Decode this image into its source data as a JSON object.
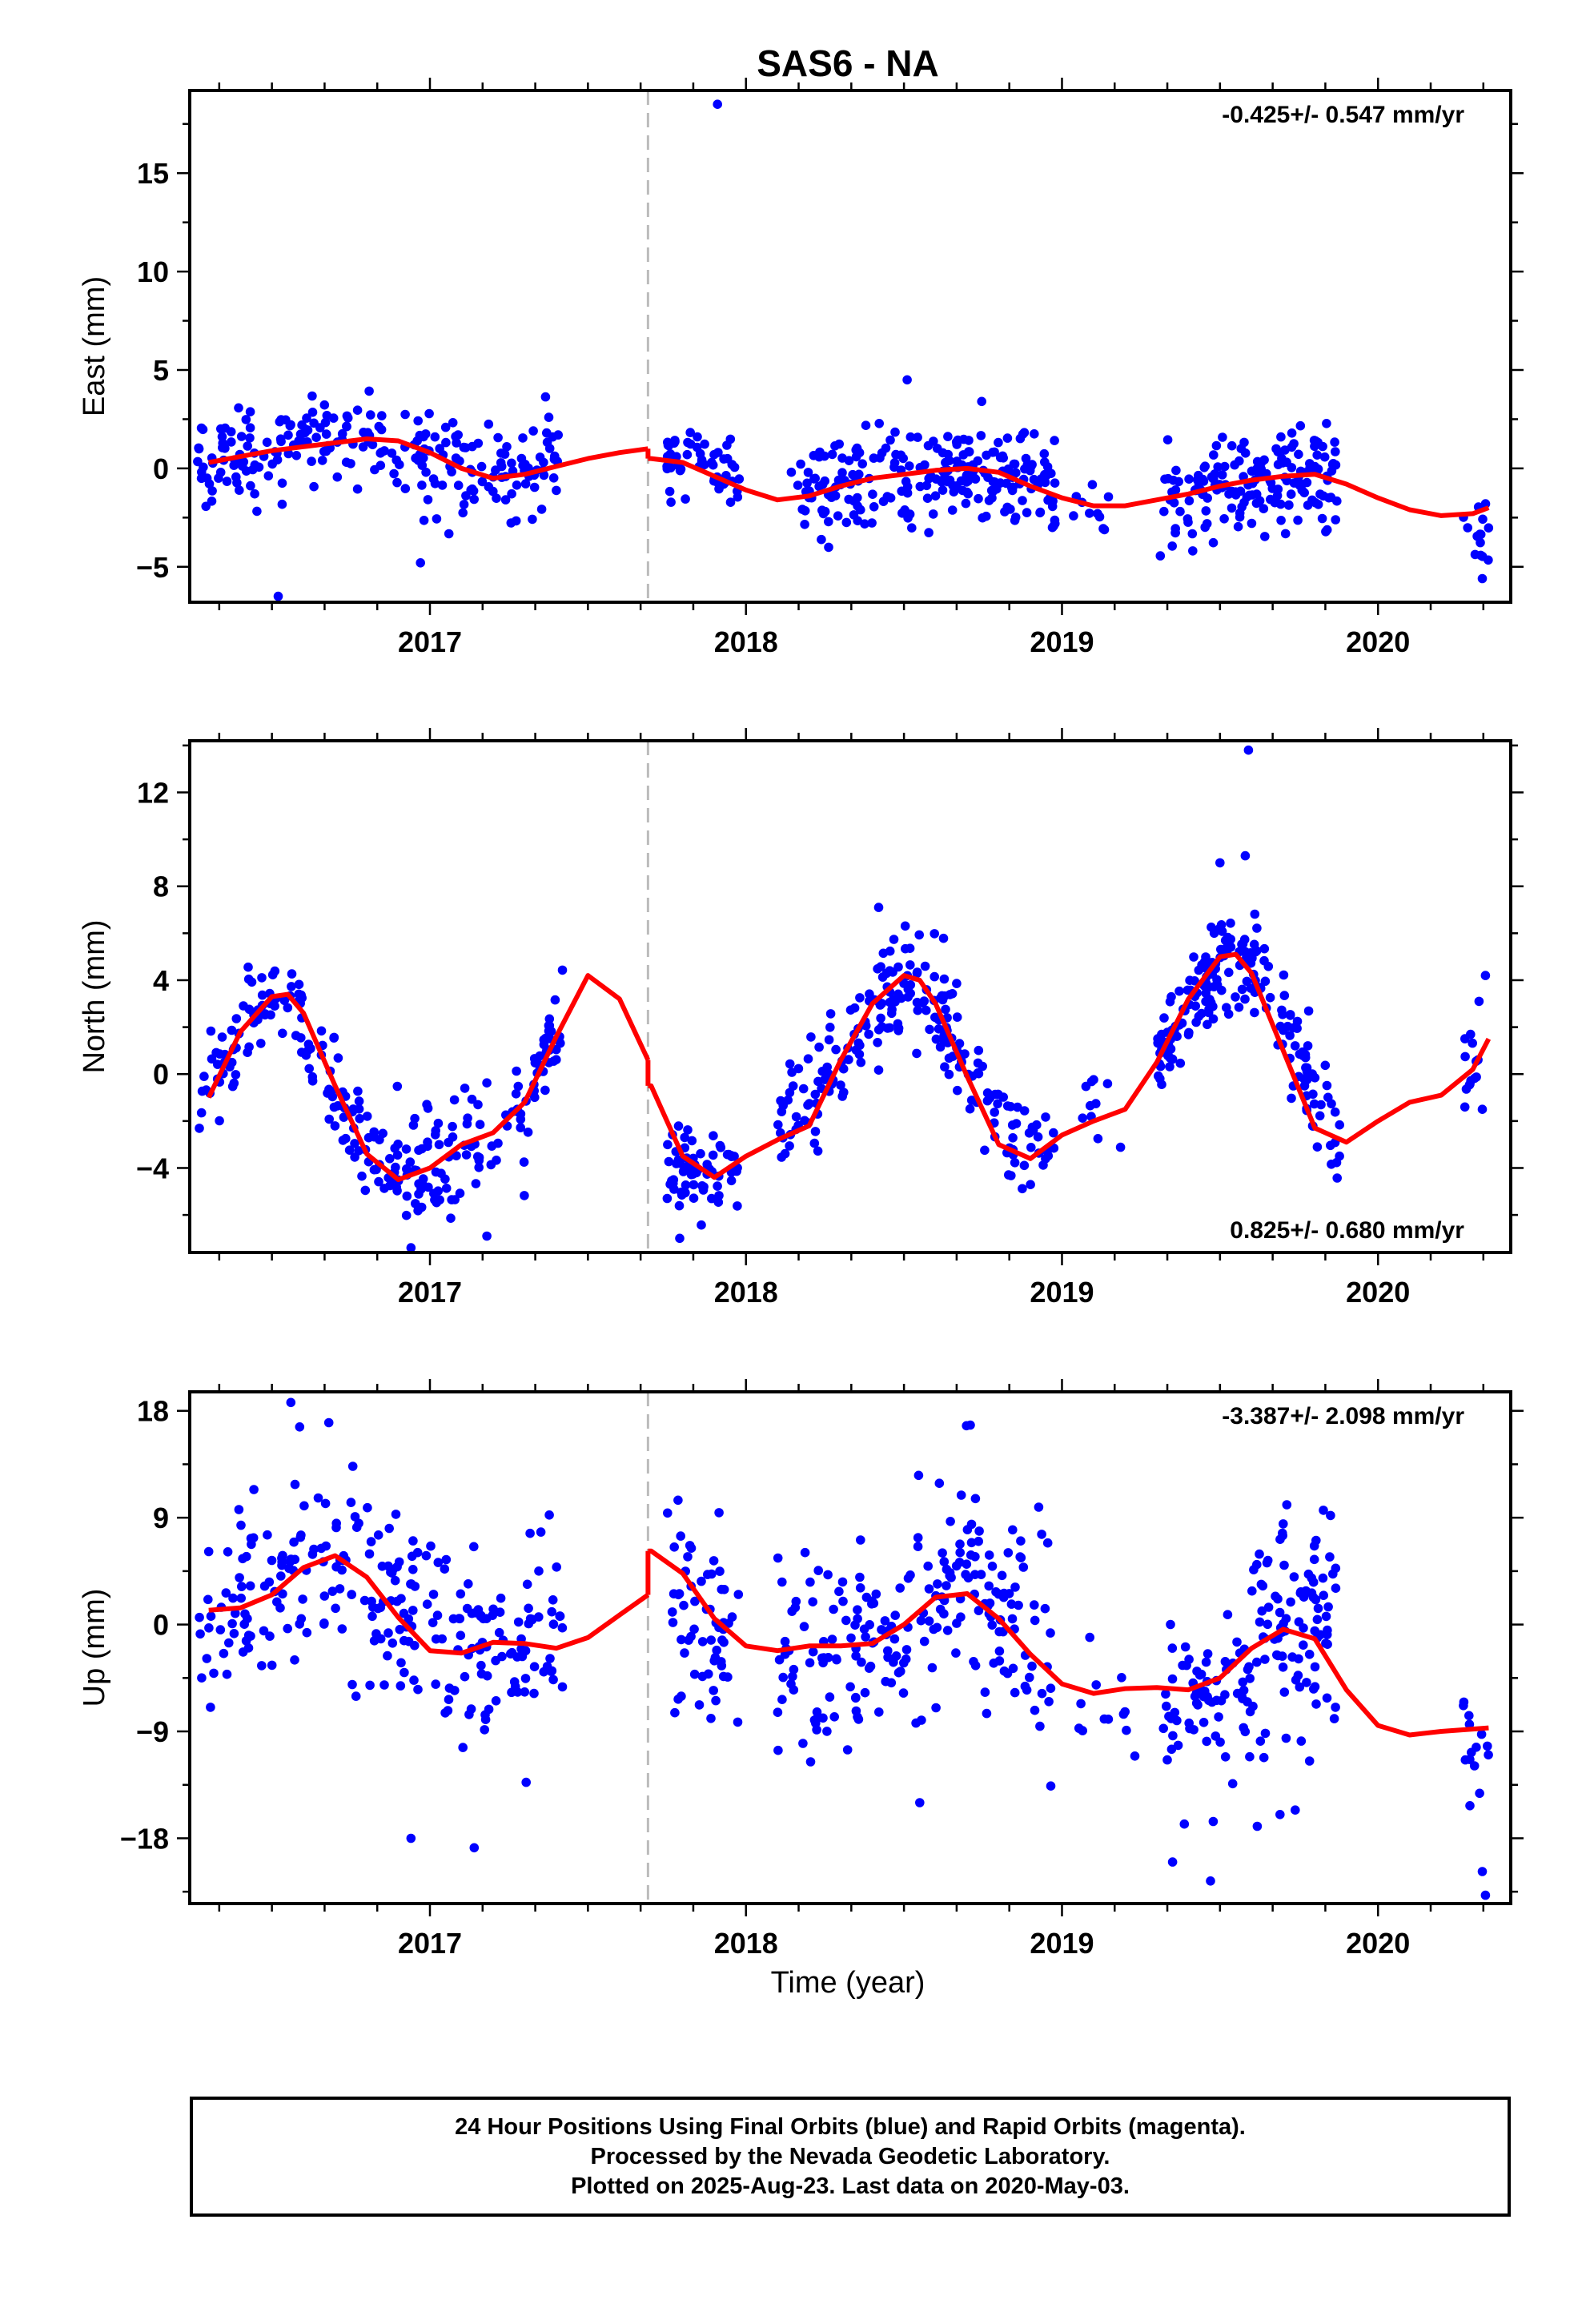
{
  "title": "SAS6 - NA",
  "colors": {
    "final": "#0000ff",
    "model": "#ff0000",
    "offset": "#bbbbbb"
  },
  "x_label": "Time (year)",
  "footer": {
    "line1": "24 Hour Positions Using Final Orbits (blue) and Rapid Orbits (magenta).",
    "line2": "Processed by the Nevada Geodetic Laboratory.",
    "line3": "Plotted on 2025-Aug-23. Last data on 2020-May-03."
  },
  "chart_data": [
    {
      "type": "scatter",
      "ylabel": "East (mm)",
      "rate": "-0.425+/- 0.547 mm/yr",
      "rate_position": "top-right",
      "xlim": [
        2016.24,
        2020.42
      ],
      "ylim": [
        -6.8,
        19.2
      ],
      "xticks": [
        2017,
        2018,
        2019,
        2020
      ],
      "yticks": [
        -5,
        0,
        5,
        10,
        15
      ],
      "offset_epoch": 2017.69,
      "model_x": [
        2016.3,
        2016.4,
        2016.5,
        2016.6,
        2016.7,
        2016.8,
        2016.9,
        2017.0,
        2017.1,
        2017.2,
        2017.3,
        2017.4,
        2017.5,
        2017.6,
        2017.69,
        2017.7,
        2017.8,
        2017.9,
        2018.0,
        2018.1,
        2018.2,
        2018.3,
        2018.4,
        2018.5,
        2018.6,
        2018.7,
        2018.8,
        2018.9,
        2019.0,
        2019.1,
        2019.2,
        2019.3,
        2019.4,
        2019.5,
        2019.6,
        2019.7,
        2019.8,
        2019.9,
        2020.0,
        2020.1,
        2020.2,
        2020.3,
        2020.35
      ],
      "model_y": [
        0.3,
        0.6,
        0.9,
        1.1,
        1.3,
        1.5,
        1.4,
        0.8,
        0.0,
        -0.5,
        -0.3,
        0.1,
        0.5,
        0.8,
        1.0,
        0.5,
        0.3,
        -0.4,
        -1.1,
        -1.6,
        -1.4,
        -0.9,
        -0.5,
        -0.3,
        -0.1,
        0.0,
        -0.2,
        -0.9,
        -1.5,
        -1.9,
        -1.9,
        -1.6,
        -1.3,
        -0.9,
        -0.6,
        -0.4,
        -0.3,
        -0.8,
        -1.5,
        -2.1,
        -2.4,
        -2.3,
        -2.0
      ],
      "groups": [
        {
          "start": 2016.26,
          "end": 2017.41,
          "n": 240,
          "mean_x": [
            2016.3,
            2016.5,
            2016.75,
            2017.0,
            2017.2,
            2017.41
          ],
          "mean_y": [
            0.3,
            1.0,
            1.5,
            0.4,
            -0.4,
            0.5
          ],
          "noise": 1.2
        },
        {
          "start": 2017.75,
          "end": 2017.98,
          "n": 55,
          "mean_x": [
            2017.75,
            2017.98
          ],
          "mean_y": [
            0.6,
            -0.2
          ],
          "noise": 1.0
        },
        {
          "start": 2018.14,
          "end": 2018.98,
          "n": 230,
          "mean_x": [
            2018.14,
            2018.4,
            2018.7,
            2018.98
          ],
          "mean_y": [
            -1.4,
            -0.6,
            0.0,
            -1.4
          ],
          "noise": 1.3
        },
        {
          "start": 2019.03,
          "end": 2019.15,
          "n": 10,
          "mean_x": [
            2019.03,
            2019.15
          ],
          "mean_y": [
            -1.7,
            -2.0
          ],
          "noise": 0.6
        },
        {
          "start": 2019.3,
          "end": 2019.87,
          "n": 170,
          "mean_x": [
            2019.3,
            2019.6,
            2019.87
          ],
          "mean_y": [
            -1.6,
            -0.7,
            -0.3
          ],
          "noise": 1.3
        },
        {
          "start": 2020.27,
          "end": 2020.35,
          "n": 14,
          "mean_x": [
            2020.27,
            2020.35
          ],
          "mean_y": [
            -3.0,
            -3.8
          ],
          "noise": 1.0
        }
      ],
      "outliers": [
        [
          2017.91,
          18.5
        ],
        [
          2016.52,
          -6.5
        ],
        [
          2016.97,
          -4.8
        ],
        [
          2018.51,
          4.5
        ],
        [
          2020.33,
          -5.6
        ]
      ]
    },
    {
      "type": "scatter",
      "ylabel": "North (mm)",
      "rate": "0.825+/- 0.680 mm/yr",
      "rate_position": "bottom-right",
      "xlim": [
        2016.24,
        2020.42
      ],
      "ylim": [
        -7.6,
        14.2
      ],
      "xticks": [
        2017,
        2018,
        2019,
        2020
      ],
      "yticks": [
        -4,
        0,
        4,
        8,
        12
      ],
      "offset_epoch": 2017.69,
      "model_x": [
        2016.3,
        2016.4,
        2016.5,
        2016.55,
        2016.6,
        2016.7,
        2016.8,
        2016.9,
        2017.0,
        2017.1,
        2017.2,
        2017.3,
        2017.4,
        2017.5,
        2017.6,
        2017.69,
        2017.7,
        2017.8,
        2017.9,
        2018.0,
        2018.1,
        2018.2,
        2018.3,
        2018.4,
        2018.5,
        2018.55,
        2018.6,
        2018.7,
        2018.8,
        2018.9,
        2019.0,
        2019.1,
        2019.2,
        2019.3,
        2019.4,
        2019.5,
        2019.55,
        2019.6,
        2019.7,
        2019.8,
        2019.9,
        2020.0,
        2020.1,
        2020.2,
        2020.3,
        2020.35
      ],
      "model_y": [
        -1.0,
        1.8,
        3.3,
        3.4,
        2.6,
        -0.5,
        -3.4,
        -4.5,
        -4.0,
        -3.0,
        -2.5,
        -1.2,
        1.6,
        4.2,
        3.2,
        0.6,
        -0.5,
        -3.5,
        -4.4,
        -3.5,
        -2.8,
        -2.2,
        0.6,
        3.0,
        4.2,
        4.0,
        3.0,
        -0.1,
        -3.0,
        -3.6,
        -2.6,
        -2.0,
        -1.5,
        0.5,
        3.2,
        5.0,
        5.1,
        4.3,
        1.0,
        -2.3,
        -2.9,
        -2.0,
        -1.2,
        -0.9,
        0.2,
        1.5
      ],
      "groups": [
        {
          "start": 2016.27,
          "end": 2017.42,
          "n": 260,
          "mean_x": [
            2016.27,
            2016.4,
            2016.55,
            2016.7,
            2016.85,
            2017.0,
            2017.15,
            2017.3,
            2017.42
          ],
          "mean_y": [
            -1.0,
            1.8,
            3.4,
            -0.5,
            -4.0,
            -4.0,
            -2.8,
            -1.2,
            2.0
          ],
          "noise": 1.1
        },
        {
          "start": 2017.75,
          "end": 2017.98,
          "n": 70,
          "mean_x": [
            2017.75,
            2017.85,
            2017.98
          ],
          "mean_y": [
            -3.6,
            -4.5,
            -3.9
          ],
          "noise": 1.0
        },
        {
          "start": 2018.1,
          "end": 2018.98,
          "n": 220,
          "mean_x": [
            2018.1,
            2018.3,
            2018.5,
            2018.6,
            2018.75,
            2018.9,
            2018.98
          ],
          "mean_y": [
            -2.6,
            0.7,
            4.0,
            3.0,
            -1.0,
            -3.6,
            -3.0
          ],
          "noise": 1.1
        },
        {
          "start": 2019.05,
          "end": 2019.2,
          "n": 10,
          "mean_x": [
            2019.05,
            2019.2
          ],
          "mean_y": [
            -1.8,
            -1.2
          ],
          "noise": 0.9
        },
        {
          "start": 2019.3,
          "end": 2019.88,
          "n": 190,
          "mean_x": [
            2019.3,
            2019.45,
            2019.55,
            2019.65,
            2019.75,
            2019.88
          ],
          "mean_y": [
            0.5,
            4.0,
            5.0,
            4.2,
            0.2,
            -3.0
          ],
          "noise": 1.1
        },
        {
          "start": 2020.27,
          "end": 2020.35,
          "n": 14,
          "mean_x": [
            2020.27,
            2020.35
          ],
          "mean_y": [
            0.4,
            1.8
          ],
          "noise": 1.0
        }
      ],
      "outliers": [
        [
          2019.59,
          13.8
        ],
        [
          2019.58,
          9.3
        ],
        [
          2019.5,
          9.0
        ],
        [
          2018.42,
          7.1
        ],
        [
          2016.94,
          -7.4
        ],
        [
          2017.18,
          -6.9
        ],
        [
          2020.34,
          4.2
        ],
        [
          2020.33,
          -1.5
        ]
      ]
    },
    {
      "type": "scatter",
      "ylabel": "Up (mm)",
      "rate": "-3.387+/- 2.098 mm/yr",
      "rate_position": "top-right",
      "xlim": [
        2016.24,
        2020.42
      ],
      "ylim": [
        -23.5,
        19.6
      ],
      "xticks": [
        2017,
        2018,
        2019,
        2020
      ],
      "yticks": [
        -18,
        -9,
        0,
        9,
        18
      ],
      "offset_epoch": 2017.69,
      "model_x": [
        2016.3,
        2016.4,
        2016.5,
        2016.6,
        2016.7,
        2016.8,
        2016.9,
        2017.0,
        2017.1,
        2017.2,
        2017.3,
        2017.4,
        2017.5,
        2017.6,
        2017.69,
        2017.7,
        2017.8,
        2017.9,
        2018.0,
        2018.1,
        2018.2,
        2018.3,
        2018.4,
        2018.5,
        2018.6,
        2018.7,
        2018.8,
        2018.9,
        2019.0,
        2019.1,
        2019.2,
        2019.3,
        2019.4,
        2019.5,
        2019.6,
        2019.7,
        2019.8,
        2019.9,
        2020.0,
        2020.1,
        2020.2,
        2020.3,
        2020.35
      ],
      "model_y": [
        1.2,
        1.4,
        2.5,
        4.8,
        5.8,
        4.0,
        0.6,
        -2.2,
        -2.4,
        -1.5,
        -1.6,
        -2.0,
        -1.1,
        0.8,
        2.5,
        6.2,
        4.3,
        0.5,
        -1.8,
        -2.2,
        -1.8,
        -1.8,
        -1.6,
        0.0,
        2.3,
        2.6,
        0.5,
        -2.5,
        -5.0,
        -5.8,
        -5.4,
        -5.3,
        -5.5,
        -4.5,
        -2.0,
        -0.4,
        -1.2,
        -5.5,
        -8.5,
        -9.3,
        -9.0,
        -8.8,
        -8.7
      ],
      "groups": [
        {
          "start": 2016.27,
          "end": 2017.42,
          "n": 260,
          "mean_x": [
            2016.27,
            2016.5,
            2016.7,
            2016.9,
            2017.1,
            2017.42
          ],
          "mean_y": [
            2.0,
            3.0,
            5.5,
            1.5,
            -2.0,
            -2.0
          ],
          "noise": 4.2
        },
        {
          "start": 2017.75,
          "end": 2017.98,
          "n": 60,
          "mean_x": [
            2017.75,
            2017.98
          ],
          "mean_y": [
            3.5,
            -2.0
          ],
          "noise": 3.5
        },
        {
          "start": 2018.1,
          "end": 2018.97,
          "n": 220,
          "mean_x": [
            2018.1,
            2018.4,
            2018.7,
            2018.97
          ],
          "mean_y": [
            -2.5,
            -1.5,
            2.5,
            -3.0
          ],
          "noise": 4.5
        },
        {
          "start": 2019.05,
          "end": 2019.25,
          "n": 12,
          "mean_x": [
            2019.05,
            2019.25
          ],
          "mean_y": [
            -6.5,
            -8.0
          ],
          "noise": 3.0
        },
        {
          "start": 2019.32,
          "end": 2019.87,
          "n": 170,
          "mean_x": [
            2019.32,
            2019.55,
            2019.87
          ],
          "mean_y": [
            -8.0,
            -4.5,
            0.5
          ],
          "noise": 4.8
        },
        {
          "start": 2020.27,
          "end": 2020.35,
          "n": 14,
          "mean_x": [
            2020.27,
            2020.35
          ],
          "mean_y": [
            -8.5,
            -13.0
          ],
          "noise": 5.0
        }
      ],
      "outliers": [
        [
          2016.56,
          18.7
        ],
        [
          2016.68,
          17.0
        ],
        [
          2018.71,
          16.8
        ],
        [
          2016.94,
          -18.0
        ],
        [
          2017.14,
          -18.8
        ],
        [
          2019.47,
          -21.6
        ],
        [
          2019.35,
          -20.0
        ],
        [
          2020.34,
          -22.8
        ],
        [
          2020.33,
          -20.8
        ],
        [
          2018.55,
          -15.0
        ],
        [
          2019.69,
          -16.0
        ]
      ]
    }
  ]
}
